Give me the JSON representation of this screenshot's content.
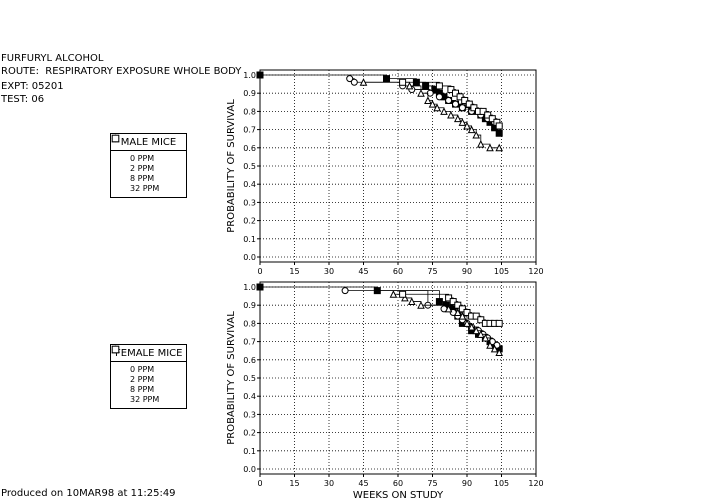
{
  "header": {
    "line1": "FURFURYL ALCOHOL",
    "line2": "ROUTE:  RESPIRATORY EXPOSURE WHOLE BODY",
    "line3": "EXPT: 05201",
    "line4": "TEST: 06"
  },
  "footer": "Produced on 10MAR98 at 11:25:49",
  "legend_male": {
    "title": "MALE MICE",
    "items": [
      {
        "label": "0 PPM",
        "symbol": "filled-square"
      },
      {
        "label": "2 PPM",
        "symbol": "circle"
      },
      {
        "label": "8 PPM",
        "symbol": "triangle"
      },
      {
        "label": "32 PPM",
        "symbol": "square"
      }
    ]
  },
  "legend_female": {
    "title": "FEMALE MICE",
    "items": [
      {
        "label": "0 PPM",
        "symbol": "filled-square"
      },
      {
        "label": "2 PPM",
        "symbol": "circle"
      },
      {
        "label": "8 PPM",
        "symbol": "triangle"
      },
      {
        "label": "32 PPM",
        "symbol": "square"
      }
    ]
  },
  "chart_data": [
    {
      "type": "line",
      "panel": "male",
      "xlabel": "",
      "ylabel": "PROBABILITY OF SURVIVAL",
      "xlim": [
        0,
        120
      ],
      "ylim": [
        0.0,
        1.0
      ],
      "xticks": [
        "0",
        "15",
        "30",
        "45",
        "60",
        "75",
        "90",
        "105",
        "120"
      ],
      "yticks": [
        "0.0",
        "0.1",
        "0.2",
        "0.3",
        "0.4",
        "0.5",
        "0.6",
        "0.7",
        "0.8",
        "0.9",
        "1.0"
      ],
      "grid": true,
      "series": [
        {
          "name": "0 PPM",
          "symbol": "filled-square",
          "x": [
            0,
            55,
            68,
            72,
            76,
            78,
            80,
            82,
            85,
            88,
            92,
            96,
            98,
            100,
            102,
            104
          ],
          "y": [
            1.0,
            0.98,
            0.96,
            0.94,
            0.92,
            0.9,
            0.88,
            0.86,
            0.84,
            0.82,
            0.8,
            0.78,
            0.76,
            0.74,
            0.71,
            0.68
          ]
        },
        {
          "name": "2 PPM",
          "symbol": "circle",
          "x": [
            39,
            41,
            62,
            66,
            74,
            78,
            82,
            85,
            88,
            92,
            96,
            99,
            102,
            104
          ],
          "y": [
            0.98,
            0.96,
            0.94,
            0.92,
            0.9,
            0.88,
            0.86,
            0.84,
            0.82,
            0.8,
            0.78,
            0.76,
            0.74,
            0.72
          ]
        },
        {
          "name": "8 PPM",
          "symbol": "triangle",
          "x": [
            45,
            65,
            70,
            73,
            75,
            77,
            80,
            83,
            86,
            88,
            90,
            92,
            94,
            96,
            100,
            104
          ],
          "y": [
            0.96,
            0.94,
            0.9,
            0.86,
            0.84,
            0.82,
            0.8,
            0.78,
            0.76,
            0.74,
            0.72,
            0.7,
            0.67,
            0.62,
            0.6,
            0.6
          ]
        },
        {
          "name": "32 PPM",
          "symbol": "square",
          "x": [
            62,
            78,
            83,
            85,
            87,
            89,
            91,
            93,
            95,
            97,
            99,
            101,
            103,
            104
          ],
          "y": [
            0.96,
            0.94,
            0.92,
            0.9,
            0.88,
            0.86,
            0.84,
            0.82,
            0.8,
            0.8,
            0.78,
            0.76,
            0.74,
            0.72
          ]
        }
      ]
    },
    {
      "type": "line",
      "panel": "female",
      "xlabel": "WEEKS ON STUDY",
      "ylabel": "PROBABILITY OF SURVIVAL",
      "xlim": [
        0,
        120
      ],
      "ylim": [
        0.0,
        1.0
      ],
      "xticks": [
        "0",
        "15",
        "30",
        "45",
        "60",
        "75",
        "90",
        "105",
        "120"
      ],
      "yticks": [
        "0.0",
        "0.1",
        "0.2",
        "0.3",
        "0.4",
        "0.5",
        "0.6",
        "0.7",
        "0.8",
        "0.9",
        "1.0"
      ],
      "grid": true,
      "series": [
        {
          "name": "0 PPM",
          "symbol": "filled-square",
          "x": [
            0,
            51,
            78,
            81,
            84,
            86,
            88,
            92,
            95,
            98,
            100,
            102,
            104
          ],
          "y": [
            1.0,
            0.98,
            0.92,
            0.9,
            0.88,
            0.84,
            0.8,
            0.76,
            0.74,
            0.72,
            0.7,
            0.68,
            0.66
          ]
        },
        {
          "name": "2 PPM",
          "symbol": "circle",
          "x": [
            37,
            73,
            80,
            84,
            86,
            88,
            90,
            92,
            95,
            97,
            99,
            101,
            103
          ],
          "y": [
            0.98,
            0.9,
            0.88,
            0.86,
            0.84,
            0.82,
            0.8,
            0.78,
            0.76,
            0.74,
            0.72,
            0.7,
            0.68
          ]
        },
        {
          "name": "8 PPM",
          "symbol": "triangle",
          "x": [
            58,
            63,
            66,
            70,
            82,
            86,
            88,
            90,
            92,
            94,
            96,
            98,
            100,
            102,
            104
          ],
          "y": [
            0.96,
            0.94,
            0.92,
            0.9,
            0.88,
            0.86,
            0.84,
            0.8,
            0.78,
            0.76,
            0.74,
            0.72,
            0.68,
            0.66,
            0.64
          ]
        },
        {
          "name": "32 PPM",
          "symbol": "square",
          "x": [
            62,
            82,
            84,
            86,
            88,
            90,
            92,
            94,
            96,
            98,
            100,
            102,
            104
          ],
          "y": [
            0.96,
            0.94,
            0.92,
            0.9,
            0.88,
            0.86,
            0.84,
            0.84,
            0.82,
            0.8,
            0.8,
            0.8,
            0.8
          ]
        }
      ]
    }
  ]
}
